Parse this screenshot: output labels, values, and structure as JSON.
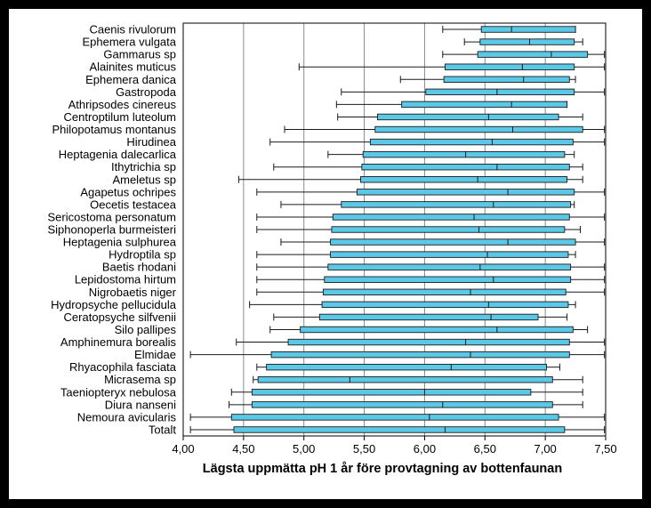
{
  "chart_data": {
    "type": "boxplot",
    "title": "",
    "xlabel": "Lägsta uppmätta pH 1 år före provtagning av bottenfaunan",
    "ylabel": "",
    "xlim": [
      4.0,
      7.5
    ],
    "x_ticks": [
      4.0,
      4.5,
      5.0,
      5.5,
      6.0,
      6.5,
      7.0,
      7.5
    ],
    "x_tick_labels": [
      "4,00",
      "4,50",
      "5,00",
      "5,50",
      "6,00",
      "6,50",
      "7,00",
      "7,50"
    ],
    "grid": "vertical",
    "colors": {
      "box_fill": "#5bc8e8",
      "box_stroke": "#1a1a1a",
      "background": "#000000",
      "plot_background": "#ffffff"
    },
    "categories": [
      "Caenis rivulorum",
      "Ephemera vulgata",
      "Gammarus sp",
      "Alainites muticus",
      "Ephemera danica",
      "Gastropoda",
      "Athripsodes cinereus",
      "Centroptilum luteolum",
      "Philopotamus montanus",
      "Hirudinea",
      "Heptagenia dalecarlica",
      "Ithytrichia sp",
      "Ameletus sp",
      "Agapetus ochripes",
      "Oecetis testacea",
      "Sericostoma personatum",
      "Siphonoperla burmeisteri",
      "Heptagenia sulphurea",
      "Hydroptila sp",
      "Baetis rhodani",
      "Lepidostoma hirtum",
      "Nigrobaetis niger",
      "Hydropsyche pellucidula",
      "Ceratopsyche silfvenii",
      "Silo pallipes",
      "Amphinemura borealis",
      "Elmidae",
      "Rhyacophila fasciata",
      "Micrasema sp",
      "Taeniopteryx nebulosa",
      "Diura nanseni",
      "Nemoura avicularis",
      "Totalt"
    ],
    "boxes": [
      {
        "min": 6.15,
        "q1": 6.47,
        "median": 6.72,
        "q3": 7.25,
        "max": 7.25
      },
      {
        "min": 6.33,
        "q1": 6.46,
        "median": 6.87,
        "q3": 7.24,
        "max": 7.31
      },
      {
        "min": 6.15,
        "q1": 6.44,
        "median": 7.05,
        "q3": 7.35,
        "max": 7.49
      },
      {
        "min": 4.96,
        "q1": 6.17,
        "median": 6.81,
        "q3": 7.24,
        "max": 7.49
      },
      {
        "min": 5.8,
        "q1": 6.16,
        "median": 6.82,
        "q3": 7.2,
        "max": 7.25
      },
      {
        "min": 5.31,
        "q1": 6.01,
        "median": 6.6,
        "q3": 7.24,
        "max": 7.49
      },
      {
        "min": 5.27,
        "q1": 5.81,
        "median": 6.72,
        "q3": 7.18,
        "max": 7.18
      },
      {
        "min": 5.28,
        "q1": 5.61,
        "median": 6.53,
        "q3": 7.11,
        "max": 7.31
      },
      {
        "min": 4.84,
        "q1": 5.59,
        "median": 6.73,
        "q3": 7.31,
        "max": 7.49
      },
      {
        "min": 4.72,
        "q1": 5.55,
        "median": 6.56,
        "q3": 7.23,
        "max": 7.49
      },
      {
        "min": 5.2,
        "q1": 5.49,
        "median": 6.34,
        "q3": 7.16,
        "max": 7.24
      },
      {
        "min": 4.75,
        "q1": 5.48,
        "median": 6.6,
        "q3": 7.2,
        "max": 7.31
      },
      {
        "min": 4.46,
        "q1": 5.47,
        "median": 6.44,
        "q3": 7.18,
        "max": 7.31
      },
      {
        "min": 4.61,
        "q1": 5.44,
        "median": 6.69,
        "q3": 7.24,
        "max": 7.49
      },
      {
        "min": 4.81,
        "q1": 5.31,
        "median": 6.57,
        "q3": 7.21,
        "max": 7.24
      },
      {
        "min": 4.61,
        "q1": 5.24,
        "median": 6.41,
        "q3": 7.2,
        "max": 7.49
      },
      {
        "min": 4.61,
        "q1": 5.23,
        "median": 6.45,
        "q3": 7.16,
        "max": 7.29
      },
      {
        "min": 4.81,
        "q1": 5.22,
        "median": 6.69,
        "q3": 7.25,
        "max": 7.49
      },
      {
        "min": 4.61,
        "q1": 5.22,
        "median": 6.52,
        "q3": 7.19,
        "max": 7.25
      },
      {
        "min": 4.61,
        "q1": 5.2,
        "median": 6.46,
        "q3": 7.21,
        "max": 7.49
      },
      {
        "min": 4.61,
        "q1": 5.17,
        "median": 6.57,
        "q3": 7.21,
        "max": 7.49
      },
      {
        "min": 4.61,
        "q1": 5.16,
        "median": 6.38,
        "q3": 7.17,
        "max": 7.49
      },
      {
        "min": 4.55,
        "q1": 5.15,
        "median": 6.53,
        "q3": 7.19,
        "max": 7.25
      },
      {
        "min": 4.75,
        "q1": 5.13,
        "median": 6.55,
        "q3": 6.94,
        "max": 7.18
      },
      {
        "min": 4.72,
        "q1": 4.97,
        "median": 6.6,
        "q3": 7.23,
        "max": 7.35
      },
      {
        "min": 4.44,
        "q1": 4.87,
        "median": 6.34,
        "q3": 7.2,
        "max": 7.49
      },
      {
        "min": 4.06,
        "q1": 4.73,
        "median": 6.38,
        "q3": 7.2,
        "max": 7.49
      },
      {
        "min": 4.61,
        "q1": 4.69,
        "median": 6.22,
        "q3": 7.01,
        "max": 7.12
      },
      {
        "min": 4.58,
        "q1": 4.62,
        "median": 5.38,
        "q3": 7.06,
        "max": 7.31
      },
      {
        "min": 4.4,
        "q1": 4.57,
        "median": 6.0,
        "q3": 6.88,
        "max": 7.31
      },
      {
        "min": 4.38,
        "q1": 4.57,
        "median": 6.15,
        "q3": 7.06,
        "max": 7.31
      },
      {
        "min": 4.06,
        "q1": 4.4,
        "median": 6.04,
        "q3": 7.11,
        "max": 7.49
      },
      {
        "min": 4.06,
        "q1": 4.42,
        "median": 6.17,
        "q3": 7.16,
        "max": 7.49
      }
    ]
  }
}
